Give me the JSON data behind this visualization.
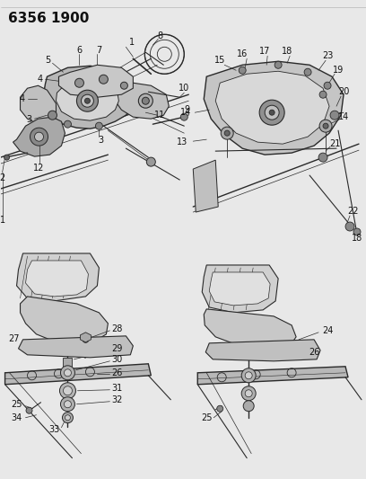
{
  "title": "6356 1900",
  "bg_color": "#e8e8e8",
  "line_color": "#2a2a2a",
  "label_fontsize": 7.0,
  "title_fontsize": 11,
  "figsize": [
    4.08,
    5.33
  ],
  "dpi": 100,
  "top_border_color": "#cccccc",
  "label_color": "#111111"
}
